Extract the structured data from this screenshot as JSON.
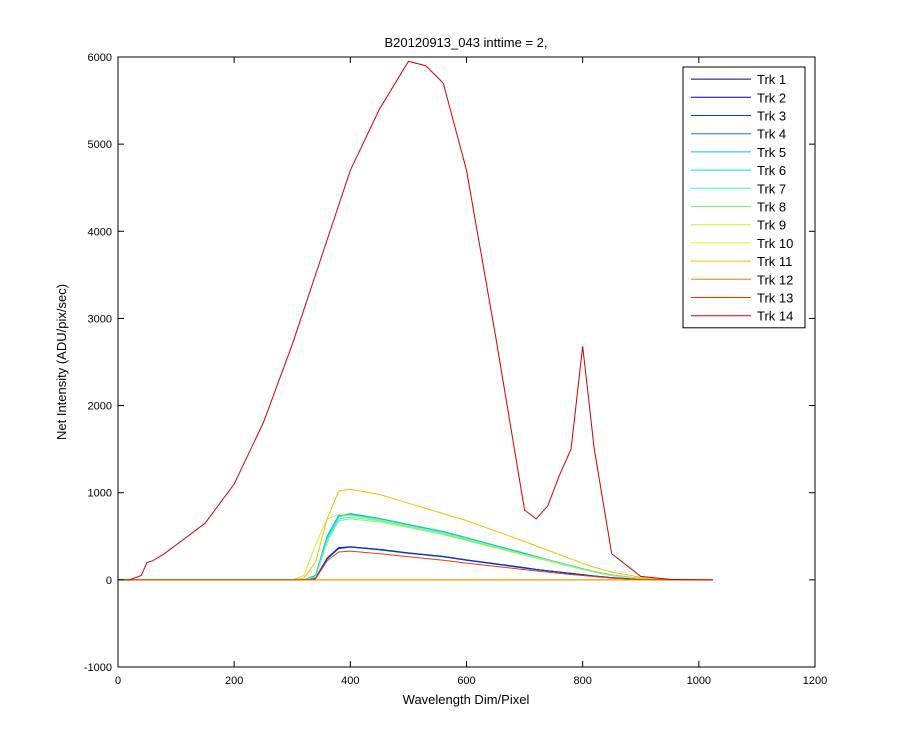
{
  "chart_data": {
    "type": "line",
    "title": "B20120913_043 inttime = 2,",
    "x_label": "Wavelength Dim/Pixel",
    "y_label": "Net Intensity (ADU/pix/sec)",
    "xlim": [
      0,
      1200
    ],
    "xticks": [
      0,
      200,
      400,
      600,
      800,
      1000,
      1200
    ],
    "ylim": [
      -1000,
      6000
    ],
    "yticks": [
      -1000,
      0,
      1000,
      2000,
      3000,
      4000,
      5000,
      6000
    ],
    "legend": "upper right",
    "x": [
      0,
      20,
      40,
      50,
      60,
      80,
      100,
      150,
      200,
      250,
      300,
      320,
      340,
      360,
      380,
      400,
      450,
      500,
      530,
      560,
      600,
      650,
      700,
      720,
      740,
      760,
      780,
      800,
      820,
      850,
      900,
      950,
      1000,
      1024
    ],
    "series": [
      {
        "name": "Trk 1",
        "color": "#000090",
        "values": [
          0,
          0,
          0,
          0,
          0,
          0,
          0,
          0,
          0,
          0,
          0,
          0,
          20,
          250,
          370,
          380,
          350,
          310,
          290,
          270,
          230,
          185,
          140,
          120,
          105,
          90,
          75,
          60,
          45,
          25,
          5,
          0,
          0,
          0
        ]
      },
      {
        "name": "Trk 2",
        "color": "#0000c0",
        "values": [
          0,
          0,
          0,
          0,
          0,
          0,
          0,
          0,
          0,
          0,
          0,
          0,
          15,
          240,
          360,
          375,
          345,
          305,
          285,
          265,
          225,
          180,
          135,
          118,
          102,
          88,
          72,
          58,
          42,
          22,
          4,
          0,
          0,
          0
        ]
      },
      {
        "name": "Trk 3",
        "color": "#0040d0",
        "values": [
          0,
          0,
          0,
          0,
          0,
          0,
          0,
          0,
          0,
          0,
          0,
          0,
          18,
          245,
          365,
          378,
          348,
          308,
          288,
          268,
          228,
          182,
          138,
          119,
          104,
          89,
          74,
          59,
          44,
          24,
          5,
          0,
          0,
          0
        ]
      },
      {
        "name": "Trk 4",
        "color": "#0080c0",
        "values": [
          0,
          0,
          0,
          0,
          0,
          0,
          0,
          0,
          0,
          0,
          0,
          0,
          50,
          500,
          740,
          750,
          700,
          630,
          590,
          550,
          480,
          390,
          300,
          265,
          230,
          195,
          160,
          125,
          95,
          55,
          15,
          0,
          0,
          0
        ]
      },
      {
        "name": "Trk 5",
        "color": "#00c0e0",
        "values": [
          0,
          0,
          0,
          0,
          0,
          0,
          0,
          0,
          0,
          0,
          0,
          0,
          45,
          490,
          735,
          760,
          705,
          635,
          595,
          555,
          485,
          395,
          305,
          268,
          232,
          197,
          162,
          127,
          96,
          56,
          16,
          0,
          0,
          0
        ]
      },
      {
        "name": "Trk 6",
        "color": "#00e0f0",
        "values": [
          0,
          0,
          0,
          0,
          0,
          0,
          0,
          0,
          0,
          0,
          0,
          0,
          40,
          480,
          725,
          745,
          695,
          625,
          585,
          545,
          475,
          385,
          295,
          262,
          228,
          193,
          158,
          123,
          93,
          53,
          14,
          0,
          0,
          0
        ]
      },
      {
        "name": "Trk 7",
        "color": "#40f0e0",
        "values": [
          0,
          0,
          0,
          0,
          0,
          0,
          0,
          0,
          0,
          0,
          0,
          0,
          35,
          460,
          700,
          720,
          680,
          612,
          572,
          532,
          462,
          375,
          288,
          255,
          222,
          188,
          154,
          120,
          90,
          50,
          13,
          0,
          0,
          0
        ]
      },
      {
        "name": "Trk 8",
        "color": "#80f080",
        "values": [
          0,
          0,
          0,
          0,
          0,
          0,
          0,
          0,
          0,
          0,
          0,
          0,
          30,
          430,
          680,
          700,
          665,
          600,
          560,
          520,
          452,
          368,
          282,
          250,
          218,
          184,
          150,
          117,
          88,
          49,
          12,
          0,
          0,
          0
        ]
      },
      {
        "name": "Trk 9",
        "color": "#c0f040",
        "values": [
          0,
          0,
          0,
          0,
          0,
          0,
          0,
          0,
          0,
          0,
          0,
          50,
          400,
          700,
          750,
          740,
          690,
          620,
          580,
          540,
          470,
          380,
          290,
          258,
          225,
          190,
          155,
          120,
          90,
          50,
          14,
          0,
          0,
          0
        ]
      },
      {
        "name": "Trk 10",
        "color": "#f0f000",
        "values": [
          0,
          0,
          0,
          0,
          0,
          0,
          0,
          0,
          0,
          0,
          0,
          0,
          0,
          0,
          0,
          0,
          0,
          0,
          0,
          0,
          0,
          0,
          0,
          0,
          0,
          0,
          0,
          0,
          0,
          0,
          0,
          0,
          0,
          0
        ]
      },
      {
        "name": "Trk 11",
        "color": "#f0c000",
        "values": [
          0,
          0,
          0,
          0,
          0,
          0,
          0,
          0,
          0,
          0,
          0,
          20,
          200,
          700,
          1020,
          1040,
          980,
          880,
          820,
          760,
          680,
          560,
          440,
          390,
          340,
          290,
          240,
          190,
          145,
          90,
          30,
          5,
          0,
          0
        ]
      },
      {
        "name": "Trk 12",
        "color": "#f08000",
        "values": [
          0,
          0,
          0,
          0,
          0,
          0,
          0,
          0,
          0,
          0,
          0,
          0,
          0,
          0,
          0,
          0,
          0,
          0,
          0,
          0,
          0,
          0,
          0,
          0,
          0,
          0,
          0,
          0,
          0,
          0,
          0,
          0,
          0,
          0
        ]
      },
      {
        "name": "Trk 13",
        "color": "#e04000",
        "values": [
          0,
          0,
          0,
          0,
          0,
          0,
          0,
          0,
          0,
          0,
          0,
          0,
          10,
          220,
          320,
          330,
          300,
          265,
          245,
          225,
          192,
          155,
          118,
          102,
          88,
          75,
          62,
          50,
          38,
          20,
          4,
          0,
          0,
          0
        ]
      },
      {
        "name": "Trk 14",
        "color": "#d00000",
        "values": [
          0,
          0,
          50,
          200,
          220,
          300,
          400,
          650,
          1100,
          1800,
          2700,
          3100,
          3500,
          3900,
          4300,
          4700,
          5400,
          5950,
          5900,
          5700,
          4700,
          2800,
          800,
          700,
          850,
          1200,
          1500,
          2680,
          1500,
          300,
          40,
          5,
          0,
          0
        ]
      }
    ]
  }
}
